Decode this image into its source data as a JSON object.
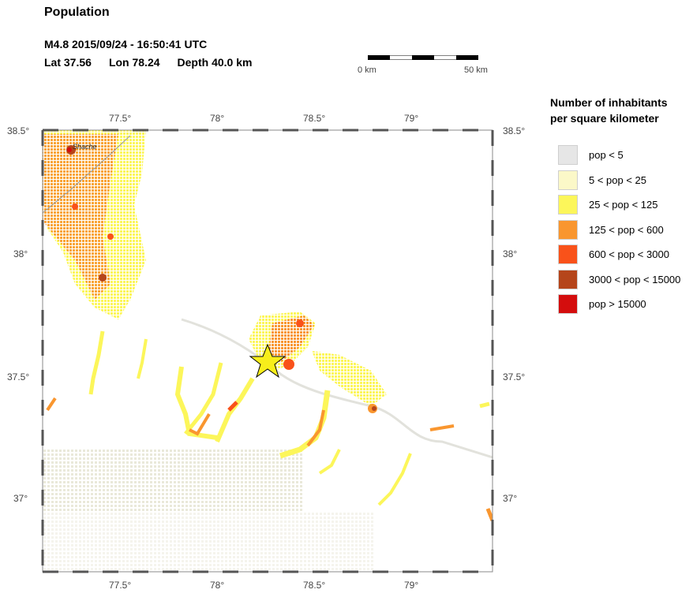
{
  "header": {
    "title": "Population",
    "event_line": "M4.8  2015/09/24 - 16:50:41 UTC",
    "lat": "Lat 37.56",
    "lon": "Lon  78.24",
    "depth": "Depth  40.0 km"
  },
  "scale": {
    "left_label": "0 km",
    "right_label": "50 km"
  },
  "map": {
    "top_lon_ticks": [
      "77.5°",
      "78°",
      "78.5°",
      "79°"
    ],
    "bottom_lon_ticks": [
      "77.5°",
      "78°",
      "78.5°",
      "79°"
    ],
    "left_lat_ticks": [
      "38.5°",
      "38°",
      "37.5°",
      "37°"
    ],
    "right_lat_ticks": [
      "38.5°",
      "38°",
      "37.5°",
      "37°"
    ],
    "city_label": "Shache",
    "epicenter_marker": "star-icon"
  },
  "legend": {
    "title_line1": "Number of inhabitants",
    "title_line2": "per square kilometer",
    "items": [
      {
        "label": "pop < 5",
        "color": "#e6e6e6"
      },
      {
        "label": "5 < pop < 25",
        "color": "#fbf8c8"
      },
      {
        "label": "25 < pop < 125",
        "color": "#fcf65a"
      },
      {
        "label": "125 < pop < 600",
        "color": "#f9962f"
      },
      {
        "label": "600 < pop < 3000",
        "color": "#f9521a"
      },
      {
        "label": "3000 < pop < 15000",
        "color": "#b5451b"
      },
      {
        "label": "pop > 15000",
        "color": "#d40d0d"
      }
    ]
  }
}
